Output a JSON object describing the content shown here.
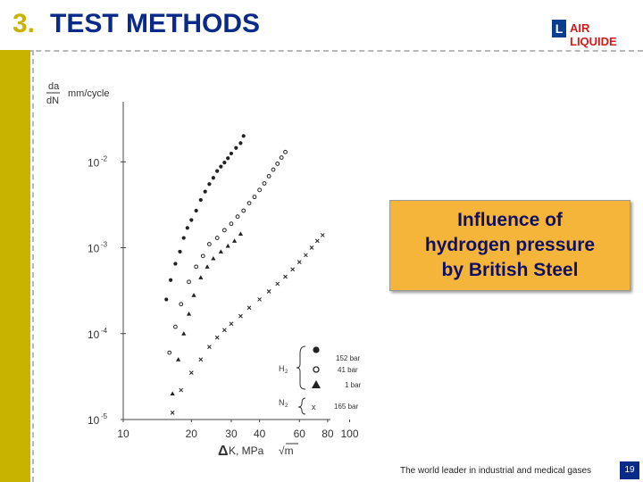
{
  "header": {
    "number": "3.",
    "title": "TEST METHODS"
  },
  "logo": {
    "mark": "L",
    "text": "AIR LIQUIDE"
  },
  "callout": {
    "lines": [
      "Influence of",
      "hydrogen pressure",
      "by British Steel"
    ]
  },
  "footer": {
    "tagline": "The world leader in industrial and medical gases",
    "page": "19"
  },
  "colors": {
    "accent": "#c8b400",
    "title": "#0a2a8a",
    "callout": "#f5b53a",
    "logo_red": "#d11a1a"
  },
  "chart_data": {
    "type": "scatter",
    "title": "",
    "ylabel_num": "da",
    "ylabel_den": "dN",
    "ylabel_unit": "mm/cycle",
    "xlabel_delta": "Δ",
    "xlabel": "K, MPa",
    "xlabel_unit": "√m",
    "x_scale": "log",
    "y_scale": "log",
    "xlim": [
      10,
      110
    ],
    "ylim": [
      1e-05,
      0.05
    ],
    "x_ticks": [
      {
        "value": 10,
        "label": "10"
      },
      {
        "value": 20,
        "label": "20"
      },
      {
        "value": 30,
        "label": "30"
      },
      {
        "value": 40,
        "label": "40"
      },
      {
        "value": 60,
        "label": "60"
      },
      {
        "value": 80,
        "label": "80"
      },
      {
        "value": 100,
        "label": "100"
      }
    ],
    "y_ticks": [
      {
        "value": 0.01,
        "base": "10",
        "exp": "-2"
      },
      {
        "value": 0.001,
        "base": "10",
        "exp": "-3"
      },
      {
        "value": 0.0001,
        "base": "10",
        "exp": "-4"
      },
      {
        "value": 1e-05,
        "base": "10",
        "exp": "-5"
      }
    ],
    "legend": {
      "h2_label": "H",
      "h2_sub": "2",
      "n2_label": "N",
      "n2_sub": "2",
      "entries": [
        {
          "marker": "dot",
          "label": "152 bar"
        },
        {
          "marker": "circle",
          "label": "41 bar"
        },
        {
          "marker": "triangle",
          "label": "1 bar"
        },
        {
          "marker": "x",
          "label": "165 bar"
        }
      ]
    },
    "series": [
      {
        "name": "H2 152 bar",
        "marker": "dot",
        "x": [
          15.5,
          16.2,
          17,
          17.8,
          18.5,
          19.2,
          20,
          21,
          22,
          23,
          24,
          25,
          26,
          27,
          28,
          29,
          30,
          31.5,
          33,
          34
        ],
        "y": [
          0.00025,
          0.00042,
          0.00065,
          0.0009,
          0.0013,
          0.0017,
          0.0021,
          0.0027,
          0.0036,
          0.0045,
          0.0055,
          0.0065,
          0.0078,
          0.0088,
          0.0098,
          0.011,
          0.0125,
          0.0145,
          0.0165,
          0.02
        ]
      },
      {
        "name": "H2 41 bar",
        "marker": "circle",
        "x": [
          16,
          17,
          18,
          19.5,
          21,
          22.5,
          24,
          26,
          28,
          30,
          32,
          34,
          36,
          38,
          40,
          42,
          44,
          46,
          48,
          50,
          52
        ],
        "y": [
          6e-05,
          0.00012,
          0.00022,
          0.0004,
          0.0006,
          0.0008,
          0.0011,
          0.0013,
          0.0016,
          0.0019,
          0.0023,
          0.0027,
          0.0033,
          0.0039,
          0.0047,
          0.0056,
          0.0068,
          0.0081,
          0.0095,
          0.0112,
          0.013
        ]
      },
      {
        "name": "H2 1 bar",
        "marker": "triangle",
        "x": [
          16.5,
          17.5,
          18.5,
          19.5,
          20.5,
          22,
          23.5,
          25,
          27,
          29,
          31,
          33
        ],
        "y": [
          2e-05,
          5e-05,
          0.0001,
          0.00017,
          0.00028,
          0.00045,
          0.0006,
          0.00075,
          0.0009,
          0.00105,
          0.0012,
          0.00145
        ]
      },
      {
        "name": "N2 165 bar",
        "marker": "x",
        "x": [
          16.5,
          18,
          20,
          22,
          24,
          26,
          28,
          30,
          33,
          36,
          40,
          44,
          48,
          52,
          56,
          60,
          64,
          68,
          72,
          76
        ],
        "y": [
          1.2e-05,
          2.2e-05,
          3.5e-05,
          5e-05,
          7e-05,
          9e-05,
          0.00011,
          0.00013,
          0.00016,
          0.0002,
          0.00025,
          0.00031,
          0.00038,
          0.00046,
          0.00056,
          0.00068,
          0.00082,
          0.001,
          0.0012,
          0.0014
        ]
      }
    ]
  }
}
